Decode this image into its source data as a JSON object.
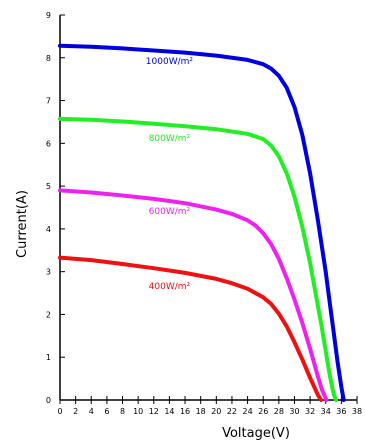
{
  "chart_data": {
    "type": "line",
    "title": "",
    "xlabel": "Voltage(V)",
    "ylabel": "Current(A)",
    "xlim": [
      0,
      38
    ],
    "ylim": [
      0,
      9
    ],
    "x_ticks": [
      "0",
      "2",
      "4",
      "6",
      "8",
      "10",
      "12",
      "14",
      "16",
      "18",
      "20",
      "22",
      "24",
      "26",
      "28",
      "30",
      "32",
      "34",
      "36",
      "38"
    ],
    "y_ticks": [
      "0",
      "1",
      "2",
      "3",
      "4",
      "5",
      "6",
      "7",
      "8",
      "9"
    ],
    "grid": false,
    "legend": "inline labels",
    "series": [
      {
        "name": "1000W/m²",
        "color": "#0000dd",
        "x": [
          0,
          4,
          8,
          12,
          16,
          20,
          24,
          26,
          27,
          28,
          29,
          30,
          31,
          32,
          33,
          34,
          34.5,
          35,
          35.5,
          36,
          36.3
        ],
        "y": [
          8.28,
          8.26,
          8.22,
          8.17,
          8.12,
          8.05,
          7.95,
          7.85,
          7.75,
          7.58,
          7.3,
          6.85,
          6.2,
          5.3,
          4.2,
          3.0,
          2.3,
          1.6,
          0.9,
          0.3,
          0
        ]
      },
      {
        "name": "800W/m²",
        "color": "#22ee22",
        "x": [
          0,
          4,
          8,
          12,
          16,
          20,
          24,
          26,
          27,
          28,
          29,
          30,
          31,
          32,
          33,
          33.5,
          34,
          34.5,
          35,
          35.3
        ],
        "y": [
          6.57,
          6.55,
          6.51,
          6.46,
          6.4,
          6.33,
          6.22,
          6.1,
          5.95,
          5.7,
          5.3,
          4.75,
          4.05,
          3.2,
          2.2,
          1.7,
          1.15,
          0.6,
          0.15,
          0
        ]
      },
      {
        "name": "600W/m²",
        "color": "#ee22ee",
        "x": [
          0,
          4,
          8,
          12,
          16,
          20,
          22,
          24,
          25,
          26,
          27,
          28,
          29,
          30,
          31,
          32,
          33,
          33.5,
          34.1
        ],
        "y": [
          4.9,
          4.85,
          4.78,
          4.7,
          4.6,
          4.45,
          4.35,
          4.2,
          4.08,
          3.9,
          3.65,
          3.3,
          2.85,
          2.35,
          1.8,
          1.2,
          0.55,
          0.25,
          0
        ]
      },
      {
        "name": "400W/m²",
        "color": "#ee1111",
        "x": [
          0,
          4,
          8,
          12,
          16,
          20,
          22,
          24,
          26,
          27,
          28,
          29,
          30,
          31,
          32,
          33,
          33.4
        ],
        "y": [
          3.33,
          3.27,
          3.18,
          3.08,
          2.97,
          2.83,
          2.73,
          2.6,
          2.4,
          2.25,
          2.02,
          1.72,
          1.35,
          0.95,
          0.52,
          0.12,
          0
        ]
      }
    ]
  }
}
